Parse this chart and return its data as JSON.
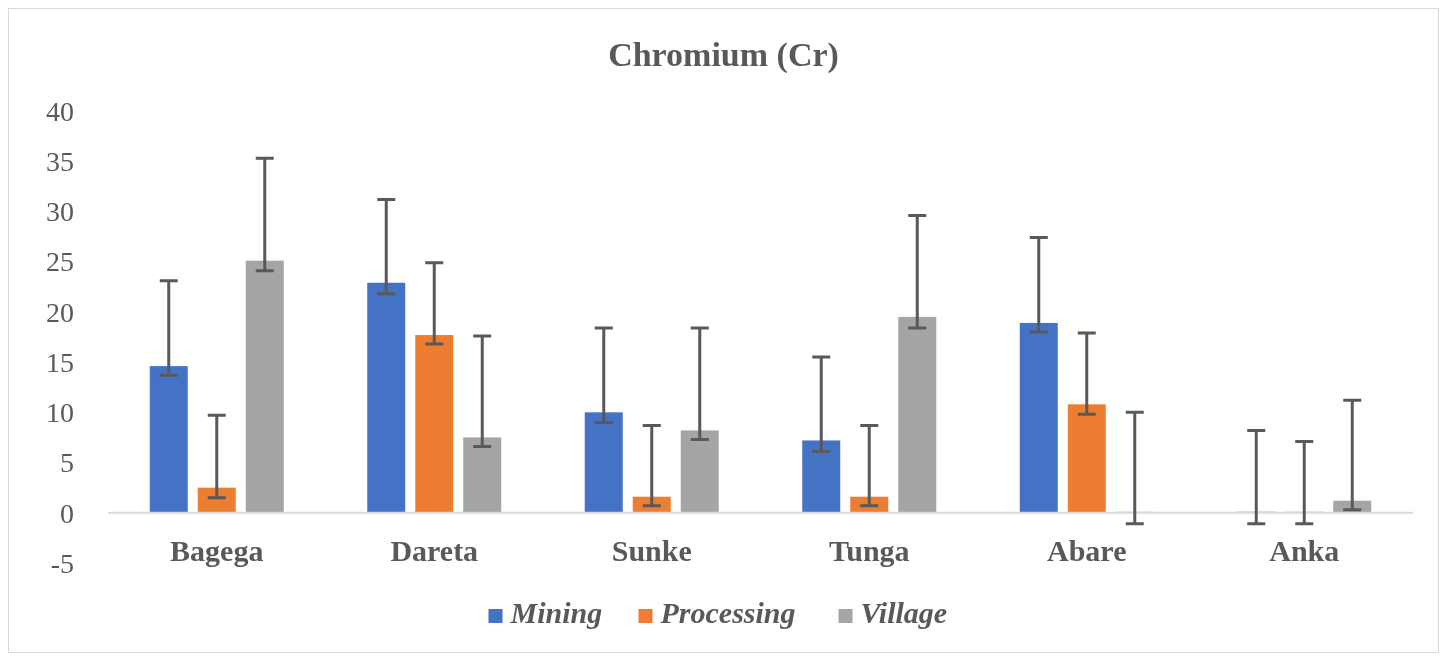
{
  "chart_data": {
    "type": "bar",
    "title": "Chromium (Cr)",
    "categories": [
      "Bagega",
      "Dareta",
      "Sunke",
      "Tunga",
      "Abare",
      "Anka"
    ],
    "series": [
      {
        "name": "Mining",
        "color": "#4472c4",
        "values": [
          14.6,
          22.9,
          10.0,
          7.2,
          18.9,
          0
        ],
        "errors": [
          [
            13.7,
            23.1
          ],
          [
            21.8,
            31.2
          ],
          [
            9.0,
            18.4
          ],
          [
            6.1,
            15.5
          ],
          [
            18.0,
            27.4
          ],
          [
            -1.1,
            8.2
          ]
        ]
      },
      {
        "name": "Processing",
        "color": "#ed7d31",
        "values": [
          2.5,
          17.7,
          1.6,
          1.6,
          10.8,
          0
        ],
        "errors": [
          [
            1.5,
            9.7
          ],
          [
            16.8,
            24.9
          ],
          [
            0.7,
            8.7
          ],
          [
            0.7,
            8.7
          ],
          [
            9.8,
            17.9
          ],
          [
            -1.1,
            7.1
          ]
        ]
      },
      {
        "name": "Village",
        "color": "#a5a5a5",
        "values": [
          25.1,
          7.5,
          8.2,
          19.5,
          0,
          1.2
        ],
        "errors": [
          [
            24.1,
            35.3
          ],
          [
            6.6,
            17.6
          ],
          [
            7.3,
            18.4
          ],
          [
            18.4,
            29.6
          ],
          [
            -1.1,
            10.0
          ],
          [
            0.3,
            11.2
          ]
        ]
      }
    ],
    "ylim": [
      -5,
      40
    ],
    "yticks": [
      -5,
      0,
      5,
      10,
      15,
      20,
      25,
      30,
      35,
      40
    ],
    "grid": false,
    "legend": "bottom"
  }
}
